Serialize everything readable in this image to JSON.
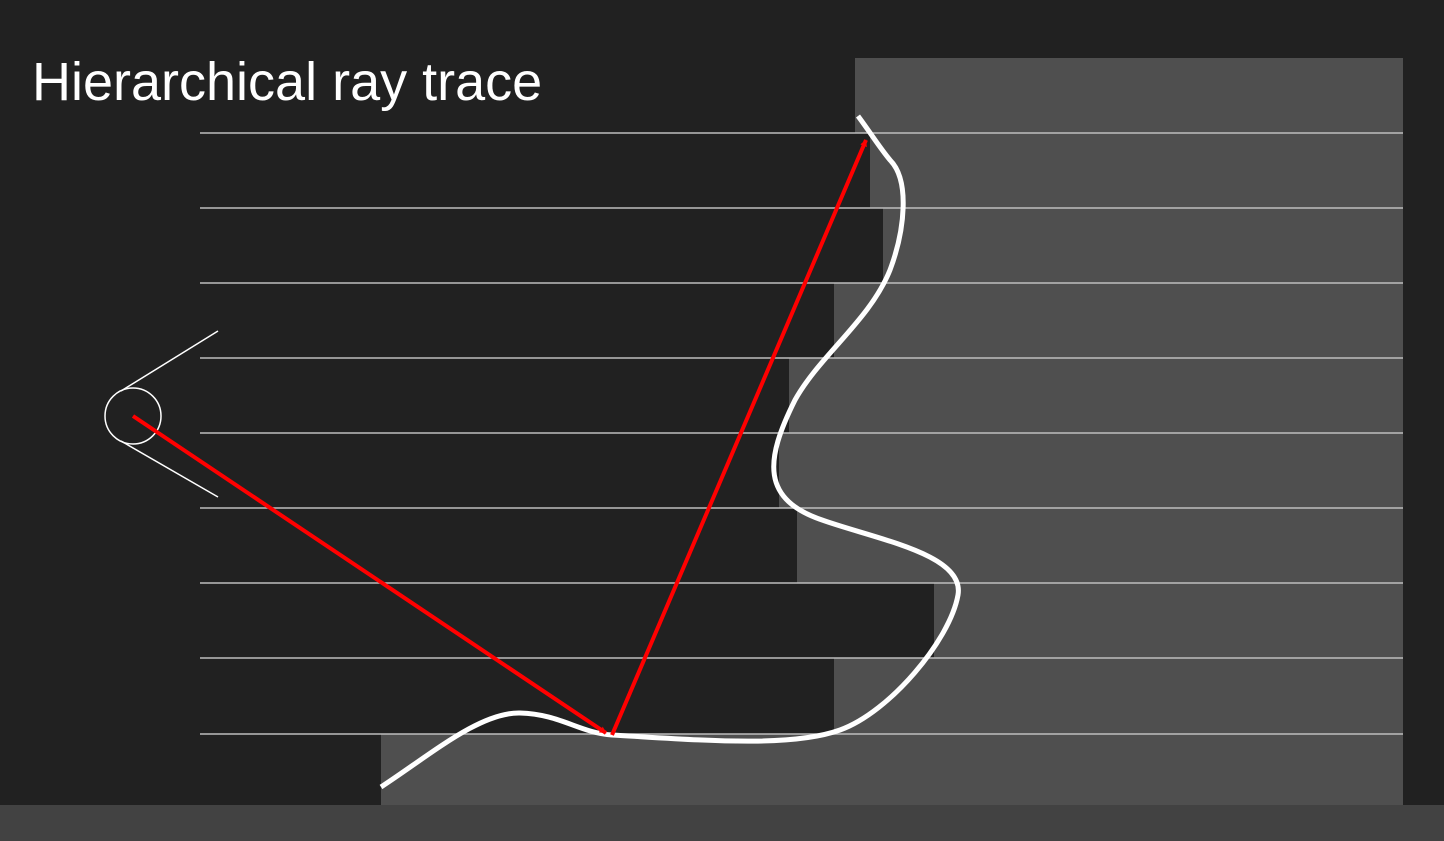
{
  "slide": {
    "title": "Hierarchical ray trace"
  },
  "colors": {
    "background": "#212121",
    "footer": "#424242",
    "depth_fill": "#4f4f4f",
    "grid_line": "#bdbdbd",
    "surface": "#ffffff",
    "ray": "#ff0000"
  },
  "icons": {
    "camera": "eye-icon"
  }
}
